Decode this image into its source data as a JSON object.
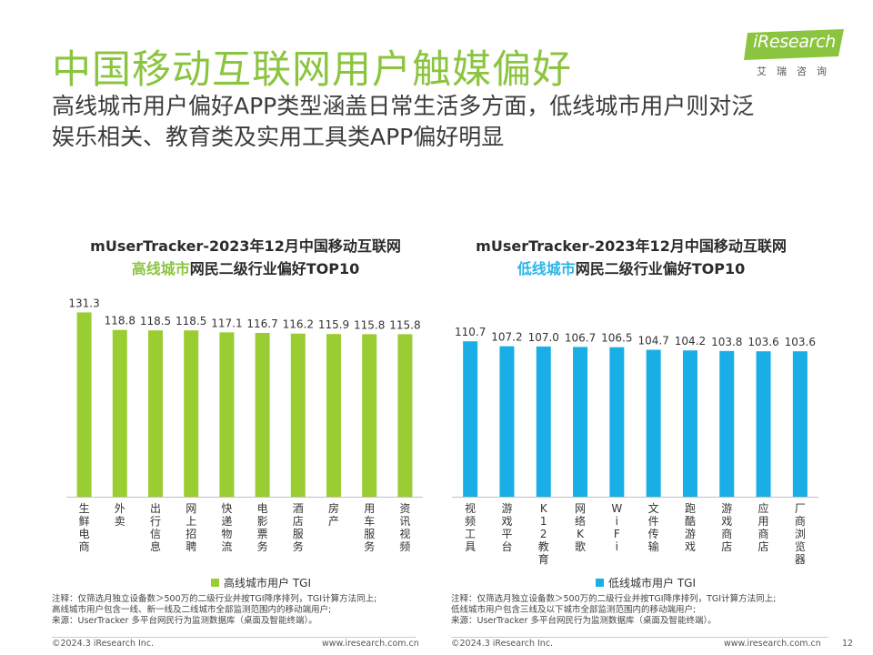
{
  "page": {
    "title": "中国移动互联网用户触媒偏好",
    "subtitle_line1": "高线城市用户偏好APP类型涵盖日常生活多方面，低线城市用户则对泛",
    "subtitle_line2": "娱乐相关、教育类及实用工具类APP偏好明显",
    "page_number": "12"
  },
  "logo": {
    "name": "iResearch",
    "sub": "艾瑞咨询",
    "color": "#8bc53f"
  },
  "chart_data": [
    {
      "type": "bar",
      "title_line1": "mUserTracker-2023年12月中国移动互联网",
      "title_highlight": "高线城市",
      "title_rest": "网民二级行业偏好TOP10",
      "categories": [
        "生鲜电商",
        "外卖",
        "出行信息",
        "网上招聘",
        "快递物流",
        "电影票务",
        "酒店服务",
        "房产",
        "用车服务",
        "资讯视频"
      ],
      "values": [
        131.3,
        118.8,
        118.5,
        118.5,
        117.1,
        116.7,
        116.2,
        115.9,
        115.8,
        115.8
      ],
      "value_labels": [
        "131.3",
        "118.8",
        "118.5",
        "118.5",
        "117.1",
        "116.7",
        "116.2",
        "115.9",
        "115.8",
        "115.8"
      ],
      "legend": "高线城市用户 TGI",
      "color": "#9acd32",
      "ylim": [
        0,
        140
      ],
      "grid": false
    },
    {
      "type": "bar",
      "title_line1": "mUserTracker-2023年12月中国移动互联网",
      "title_highlight": "低线城市",
      "title_rest": "网民二级行业偏好TOP10",
      "categories": [
        "视频工具",
        "游戏平台",
        "K12教育",
        "网络K歌",
        "WiFi",
        "文件传输",
        "跑酷游戏",
        "游戏商店",
        "应用商店",
        "厂商浏览器"
      ],
      "values": [
        110.7,
        107.2,
        107.0,
        106.7,
        106.5,
        104.7,
        104.2,
        103.8,
        103.6,
        103.6
      ],
      "value_labels": [
        "110.7",
        "107.2",
        "107.0",
        "106.7",
        "106.5",
        "104.7",
        "104.2",
        "103.8",
        "103.6",
        "103.6"
      ],
      "legend": "低线城市用户 TGI",
      "color": "#19aee6",
      "ylim": [
        0,
        140
      ],
      "grid": false
    }
  ],
  "notes": {
    "left": [
      "注释：仅筛选月独立设备数＞500万的二级行业并按TGI降序排列，TGI计算方法同上;",
      "高线城市用户包含一线、新一线及二线城市全部监测范围内的移动端用户;",
      "来源：UserTracker 多平台网民行为监测数据库（桌面及智能终端）。"
    ],
    "right": [
      "注释：仅筛选月独立设备数＞500万的二级行业并按TGI降序排列，TGI计算方法同上;",
      "低线城市用户包含三线及以下城市全部监测范围内的移动端用户;",
      "来源：UserTracker 多平台网民行为监测数据库（桌面及智能终端）。"
    ]
  },
  "footer": {
    "left_copyright": "©2024.3 iResearch Inc.",
    "left_url": "www.iresearch.com.cn",
    "right_copyright": "©2024.3 iResearch Inc.",
    "right_url": "www.iresearch.com.cn"
  }
}
